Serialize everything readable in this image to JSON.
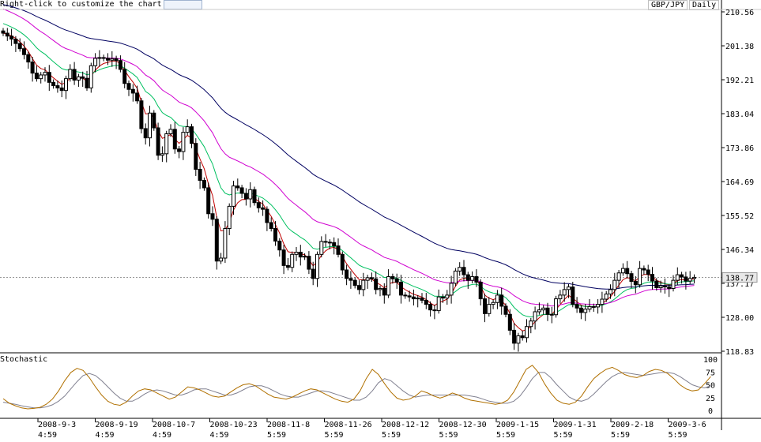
{
  "toolbar": {
    "hint": "Right-click to customize the chart",
    "symbol": "GBP/JPY",
    "period": "Daily"
  },
  "colors": {
    "ma_short": "#c00000",
    "ma_mid": "#00c060",
    "ma_long": "#d000d0",
    "ma_xlong": "#000060",
    "stoch_k": "#b07000",
    "stoch_d": "#808090",
    "current_price_bg": "#e8e8e8"
  },
  "chart_data": [
    {
      "type": "candlestick",
      "title": "",
      "y_ticks": [
        "210.56",
        "201.38",
        "192.21",
        "183.04",
        "173.86",
        "164.69",
        "155.52",
        "146.34",
        "137.17",
        "128.00",
        "118.83"
      ],
      "ylim": [
        118.83,
        210.56
      ],
      "current_price": "138.77",
      "x_labels": [
        {
          "date": "2008-9-3",
          "time": "4:59"
        },
        {
          "date": "2008-9-19",
          "time": "4:59"
        },
        {
          "date": "2008-10-7",
          "time": "4:59"
        },
        {
          "date": "2008-10-23",
          "time": "4:59"
        },
        {
          "date": "2008-11-8",
          "time": "5:59"
        },
        {
          "date": "2008-11-26",
          "time": "5:59"
        },
        {
          "date": "2008-12-12",
          "time": "5:59"
        },
        {
          "date": "2008-12-30",
          "time": "5:59"
        },
        {
          "date": "2009-1-15",
          "time": "5:59"
        },
        {
          "date": "2009-1-31",
          "time": "5:59"
        },
        {
          "date": "2009-2-18",
          "time": "5:59"
        },
        {
          "date": "2009-3-6",
          "time": "5:59"
        }
      ],
      "close": [
        204.8,
        204.0,
        203.2,
        202.0,
        200.6,
        199.0,
        197.0,
        194.0,
        192.5,
        193.5,
        194.2,
        191.5,
        190.6,
        190.0,
        189.3,
        192.5,
        195.0,
        192.1,
        193.0,
        192.6,
        190.0,
        196.0,
        198.0,
        198.2,
        198.0,
        197.5,
        197.9,
        197.4,
        195.0,
        191.2,
        189.6,
        188.6,
        186.5,
        179.0,
        176.5,
        183.2,
        179.2,
        171.8,
        172.2,
        177.6,
        178.8,
        173.5,
        172.8,
        178.0,
        179.5,
        175.0,
        168.0,
        165.0,
        163.0,
        156.0,
        154.5,
        143.2,
        144.0,
        152.0,
        158.0,
        163.5,
        163.0,
        161.5,
        160.0,
        162.5,
        159.0,
        157.6,
        157.2,
        153.6,
        152.0,
        148.6,
        146.2,
        142.0,
        141.5,
        145.0,
        145.6,
        144.3,
        144.5,
        141.0,
        138.5,
        145.0,
        148.5,
        148.3,
        148.2,
        147.3,
        145.0,
        140.8,
        138.5,
        138.0,
        136.6,
        135.5,
        138.0,
        138.7,
        138.4,
        135.5,
        135.8,
        134.0,
        139.0,
        138.4,
        137.5,
        134.0,
        133.8,
        133.5,
        133.0,
        133.2,
        132.6,
        131.5,
        130.0,
        129.8,
        133.5,
        133.2,
        134.0,
        137.2,
        140.5,
        141.5,
        139.5,
        138.0,
        139.0,
        137.5,
        133.0,
        129.0,
        131.5,
        132.0,
        134.0,
        131.0,
        128.8,
        124.5,
        121.0,
        123.0,
        122.5,
        125.5,
        127.0,
        129.5,
        130.0,
        130.5,
        128.8,
        128.7,
        133.0,
        134.0,
        135.5,
        136.2,
        131.5,
        130.5,
        129.3,
        130.2,
        130.9,
        130.8,
        131.5,
        132.9,
        134.3,
        135.5,
        138.0,
        140.0,
        141.2,
        139.8,
        137.7,
        136.8,
        141.2,
        140.8,
        139.6,
        137.8,
        136.0,
        136.5,
        136.2,
        135.8,
        138.0,
        139.5,
        138.9,
        137.8,
        138.5,
        138.8
      ],
      "series": [
        {
          "name": "",
          "color_key": "ma_short"
        },
        {
          "name": "",
          "color_key": "ma_mid"
        },
        {
          "name": "",
          "color_key": "ma_long"
        },
        {
          "name": "",
          "color_key": "ma_xlong"
        }
      ]
    },
    {
      "type": "line",
      "title": "Stochastic",
      "y_ticks": [
        "100",
        "75",
        "50",
        "25",
        "0"
      ],
      "ylim": [
        0,
        100
      ],
      "k_values": [
        23,
        14,
        9,
        5,
        3,
        4,
        6,
        12,
        22,
        38,
        58,
        74,
        82,
        78,
        64,
        46,
        30,
        18,
        12,
        10,
        16,
        28,
        38,
        42,
        40,
        34,
        28,
        22,
        26,
        36,
        46,
        44,
        40,
        34,
        28,
        26,
        28,
        36,
        44,
        50,
        52,
        48,
        40,
        32,
        26,
        24,
        22,
        26,
        32,
        38,
        42,
        40,
        34,
        28,
        22,
        18,
        16,
        22,
        38,
        62,
        80,
        70,
        52,
        36,
        24,
        20,
        22,
        28,
        38,
        34,
        28,
        24,
        28,
        34,
        30,
        24,
        20,
        18,
        16,
        14,
        12,
        14,
        20,
        36,
        58,
        80,
        88,
        74,
        52,
        34,
        20,
        14,
        12,
        16,
        28,
        46,
        62,
        72,
        80,
        84,
        78,
        70,
        66,
        64,
        68,
        76,
        80,
        78,
        72,
        62,
        50,
        42,
        38,
        40,
        52,
        66
      ],
      "d_values": [
        16,
        14,
        12,
        9,
        7,
        5,
        5,
        7,
        11,
        18,
        28,
        42,
        56,
        68,
        72,
        68,
        58,
        46,
        34,
        24,
        18,
        18,
        24,
        32,
        38,
        40,
        38,
        34,
        30,
        30,
        34,
        40,
        42,
        42,
        38,
        34,
        30,
        30,
        34,
        40,
        46,
        48,
        48,
        44,
        38,
        32,
        28,
        26,
        26,
        30,
        34,
        38,
        38,
        36,
        32,
        28,
        24,
        20,
        20,
        26,
        38,
        54,
        62,
        58,
        48,
        38,
        30,
        26,
        28,
        30,
        30,
        30,
        30,
        30,
        30,
        30,
        28,
        26,
        22,
        18,
        16,
        14,
        14,
        18,
        28,
        44,
        62,
        74,
        74,
        64,
        50,
        38,
        26,
        20,
        18,
        22,
        32,
        44,
        56,
        66,
        72,
        74,
        72,
        70,
        68,
        70,
        72,
        74,
        74,
        72,
        66,
        58,
        50,
        46,
        44,
        48
      ]
    }
  ]
}
